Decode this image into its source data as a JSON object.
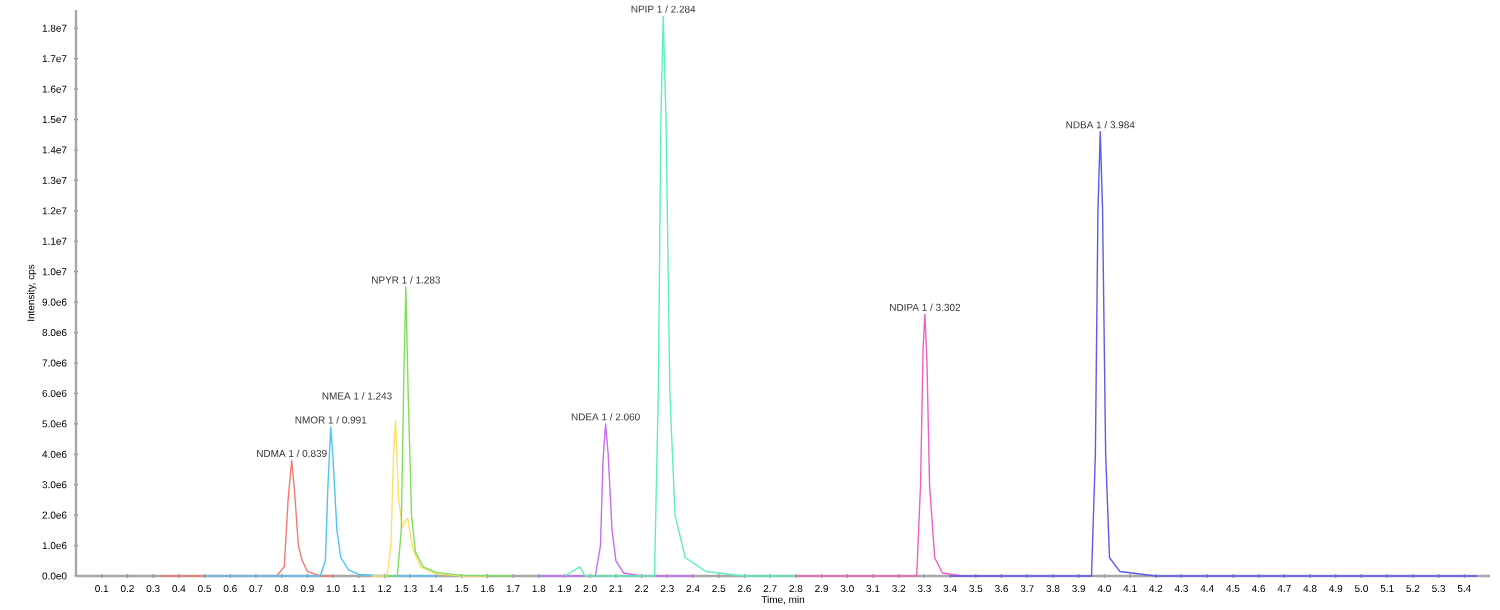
{
  "chart_data": {
    "type": "line",
    "xlabel": "Time, min",
    "ylabel": "Intensity, cps",
    "xlim": [
      0,
      5.5
    ],
    "ylim": [
      0,
      18600000
    ],
    "xticks": [
      0.1,
      0.2,
      0.3,
      0.4,
      0.5,
      0.6,
      0.7,
      0.8,
      0.9,
      {
        "value": 1,
        "label": "1.0"
      },
      1.1,
      1.2,
      1.3,
      1.4,
      1.5,
      1.6,
      1.7,
      1.8,
      1.9,
      {
        "value": 2,
        "label": "2.0"
      },
      2.1,
      2.2,
      2.3,
      2.4,
      2.5,
      2.6,
      2.7,
      2.8,
      2.9,
      {
        "value": 3,
        "label": "3.0"
      },
      3.1,
      3.2,
      3.3,
      3.4,
      3.5,
      3.6,
      3.7,
      3.8,
      3.9,
      {
        "value": 4,
        "label": "4.0"
      },
      4.1,
      4.2,
      4.3,
      4.4,
      4.5,
      4.6,
      4.7,
      4.8,
      4.9,
      {
        "value": 5,
        "label": "5.0"
      },
      5.1,
      5.2,
      5.3,
      5.4
    ],
    "yticks": [
      {
        "value": 0,
        "label": "0.0e0"
      },
      {
        "value": 1000000,
        "label": "1.0e6"
      },
      {
        "value": 2000000,
        "label": "2.0e6"
      },
      {
        "value": 3000000,
        "label": "3.0e6"
      },
      {
        "value": 4000000,
        "label": "4.0e6"
      },
      {
        "value": 5000000,
        "label": "5.0e6"
      },
      {
        "value": 6000000,
        "label": "6.0e6"
      },
      {
        "value": 7000000,
        "label": "7.0e6"
      },
      {
        "value": 8000000,
        "label": "8.0e6"
      },
      {
        "value": 9000000,
        "label": "9.0e6"
      },
      {
        "value": 10000000,
        "label": "1.0e7"
      },
      {
        "value": 11000000,
        "label": "1.1e7"
      },
      {
        "value": 12000000,
        "label": "1.2e7"
      },
      {
        "value": 13000000,
        "label": "1.3e7"
      },
      {
        "value": 14000000,
        "label": "1.4e7"
      },
      {
        "value": 15000000,
        "label": "1.5e7"
      },
      {
        "value": 16000000,
        "label": "1.6e7"
      },
      {
        "value": 17000000,
        "label": "1.7e7"
      },
      {
        "value": 18000000,
        "label": "1.8e7"
      }
    ],
    "grid": false,
    "marker": "none",
    "line_style": "solid",
    "series": [
      {
        "color": "#f47a6e",
        "x": [
          0.33,
          0.78,
          0.81,
          0.825,
          0.839,
          0.85,
          0.865,
          0.88,
          0.9,
          0.95,
          1.0
        ],
        "values": [
          0,
          0,
          300000,
          2500000,
          3800000,
          2800000,
          1000000,
          500000,
          150000,
          0,
          0
        ]
      },
      {
        "color": "#4fc3f7",
        "x": [
          0.5,
          0.95,
          0.97,
          0.98,
          0.991,
          1.0,
          1.015,
          1.03,
          1.06,
          1.1,
          1.2,
          1.4
        ],
        "values": [
          0,
          0,
          500000,
          3000000,
          4900000,
          3800000,
          1500000,
          600000,
          200000,
          50000,
          0,
          0
        ]
      },
      {
        "color": "#ffe066",
        "x": [
          1.15,
          1.21,
          1.225,
          1.235,
          1.243,
          1.255,
          1.27,
          1.28,
          1.29,
          1.31,
          1.34,
          1.4,
          1.5,
          1.6
        ],
        "values": [
          0,
          0,
          1000000,
          4000000,
          5100000,
          2500000,
          1600000,
          1800000,
          1900000,
          900000,
          300000,
          80000,
          0,
          0
        ]
      },
      {
        "color": "#7ee05a",
        "x": [
          1.2,
          1.25,
          1.265,
          1.275,
          1.283,
          1.292,
          1.305,
          1.32,
          1.35,
          1.4,
          1.5,
          1.7
        ],
        "values": [
          0,
          0,
          1500000,
          6500000,
          9500000,
          6000000,
          2000000,
          800000,
          300000,
          120000,
          20000,
          0
        ]
      },
      {
        "color": "#c86cf0",
        "x": [
          1.8,
          2.02,
          2.04,
          2.05,
          2.06,
          2.07,
          2.085,
          2.1,
          2.13,
          2.2,
          2.4
        ],
        "values": [
          0,
          0,
          1000000,
          3800000,
          5000000,
          4000000,
          1500000,
          500000,
          100000,
          0,
          0
        ]
      },
      {
        "color": "#5ef0b8",
        "x": [
          1.9,
          1.96,
          1.98,
          2.0,
          2.25,
          2.265,
          2.275,
          2.284,
          2.295,
          2.31,
          2.33,
          2.37,
          2.45,
          2.6,
          2.8
        ],
        "values": [
          0,
          300000,
          0,
          0,
          0,
          6000000,
          15000000,
          18400000,
          15000000,
          6000000,
          2000000,
          600000,
          150000,
          0,
          0
        ]
      },
      {
        "color": "#f25fc0",
        "x": [
          2.8,
          3.27,
          3.285,
          3.295,
          3.302,
          3.31,
          3.32,
          3.34,
          3.37,
          3.45,
          3.6
        ],
        "values": [
          0,
          0,
          3000000,
          7500000,
          8600000,
          7000000,
          3000000,
          600000,
          100000,
          0,
          0
        ]
      },
      {
        "color": "#5a5af0",
        "x": [
          3.4,
          3.95,
          3.965,
          3.975,
          3.984,
          3.993,
          4.005,
          4.02,
          4.06,
          4.2,
          5.45
        ],
        "values": [
          0,
          0,
          4000000,
          12000000,
          14600000,
          12000000,
          4000000,
          600000,
          150000,
          0,
          0
        ]
      }
    ],
    "annotations": [
      {
        "text": "NDMA 1 / 0.839",
        "x": 0.839,
        "y": 3800000
      },
      {
        "text": "NMOR 1 / 0.991",
        "x": 0.991,
        "y": 4900000
      },
      {
        "text": "NMEA 1 / 1.243",
        "x": 1.243,
        "y": 5100000
      },
      {
        "text": "NPYR 1 / 1.283",
        "x": 1.283,
        "y": 9500000
      },
      {
        "text": "NDEA 1 / 2.060",
        "x": 2.06,
        "y": 5000000
      },
      {
        "text": "NPIP 1 / 2.284",
        "x": 2.284,
        "y": 18400000
      },
      {
        "text": "NDIPA 1 / 3.302",
        "x": 3.302,
        "y": 8600000
      },
      {
        "text": "NDBA 1 / 3.984",
        "x": 3.984,
        "y": 14600000
      }
    ]
  }
}
